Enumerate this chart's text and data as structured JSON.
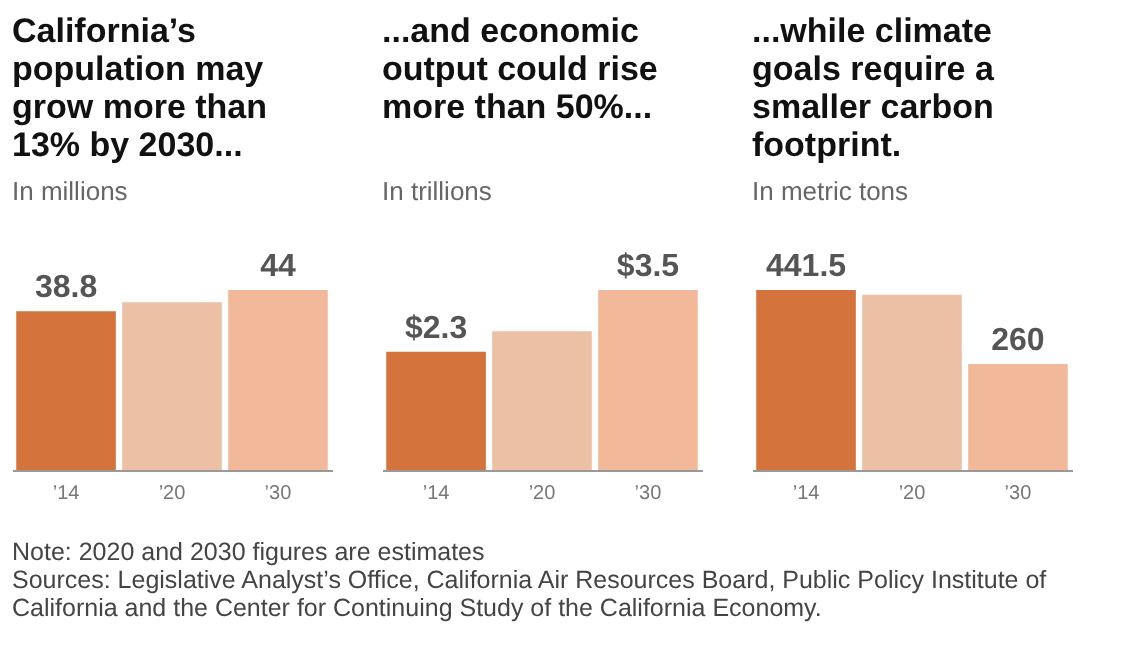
{
  "chart_data": [
    {
      "type": "bar",
      "title": "California’s population may grow more than 13% by 2030...",
      "subtitle": "In millions",
      "categories": [
        "’14",
        "’20",
        "’30"
      ],
      "values": [
        38.8,
        41,
        44
      ],
      "colors": [
        "#d4733b",
        "#ecc0a5",
        "#f1b999"
      ],
      "value_labels": [
        "38.8",
        null,
        "44"
      ],
      "annotations": [
        "Note: 2020 and 2030 figures are estimates",
        "Sources: Legislative Analyst’s Office, California Air Resources Board, Public Policy Institute of California and the Center for Continuing Study of the California Economy."
      ]
    },
    {
      "type": "bar",
      "title": "...and economic output could rise more than 50%...",
      "subtitle": "In trillions",
      "categories": [
        "’14",
        "’20",
        "’30"
      ],
      "values": [
        2.3,
        2.7,
        3.5
      ],
      "colors": [
        "#d4733b",
        "#ecc0a5",
        "#f1b999"
      ],
      "value_labels": [
        "$2.3",
        null,
        "$3.5"
      ]
    },
    {
      "type": "bar",
      "title": "...while climate goals require a smaller carbon footprint.",
      "subtitle": "In metric tons",
      "categories": [
        "’14",
        "’20",
        "’30"
      ],
      "values": [
        441.5,
        430,
        260
      ],
      "colors": [
        "#d4733b",
        "#ecc0a5",
        "#f1b999"
      ],
      "value_labels": [
        "441.5",
        null,
        "260"
      ]
    }
  ]
}
